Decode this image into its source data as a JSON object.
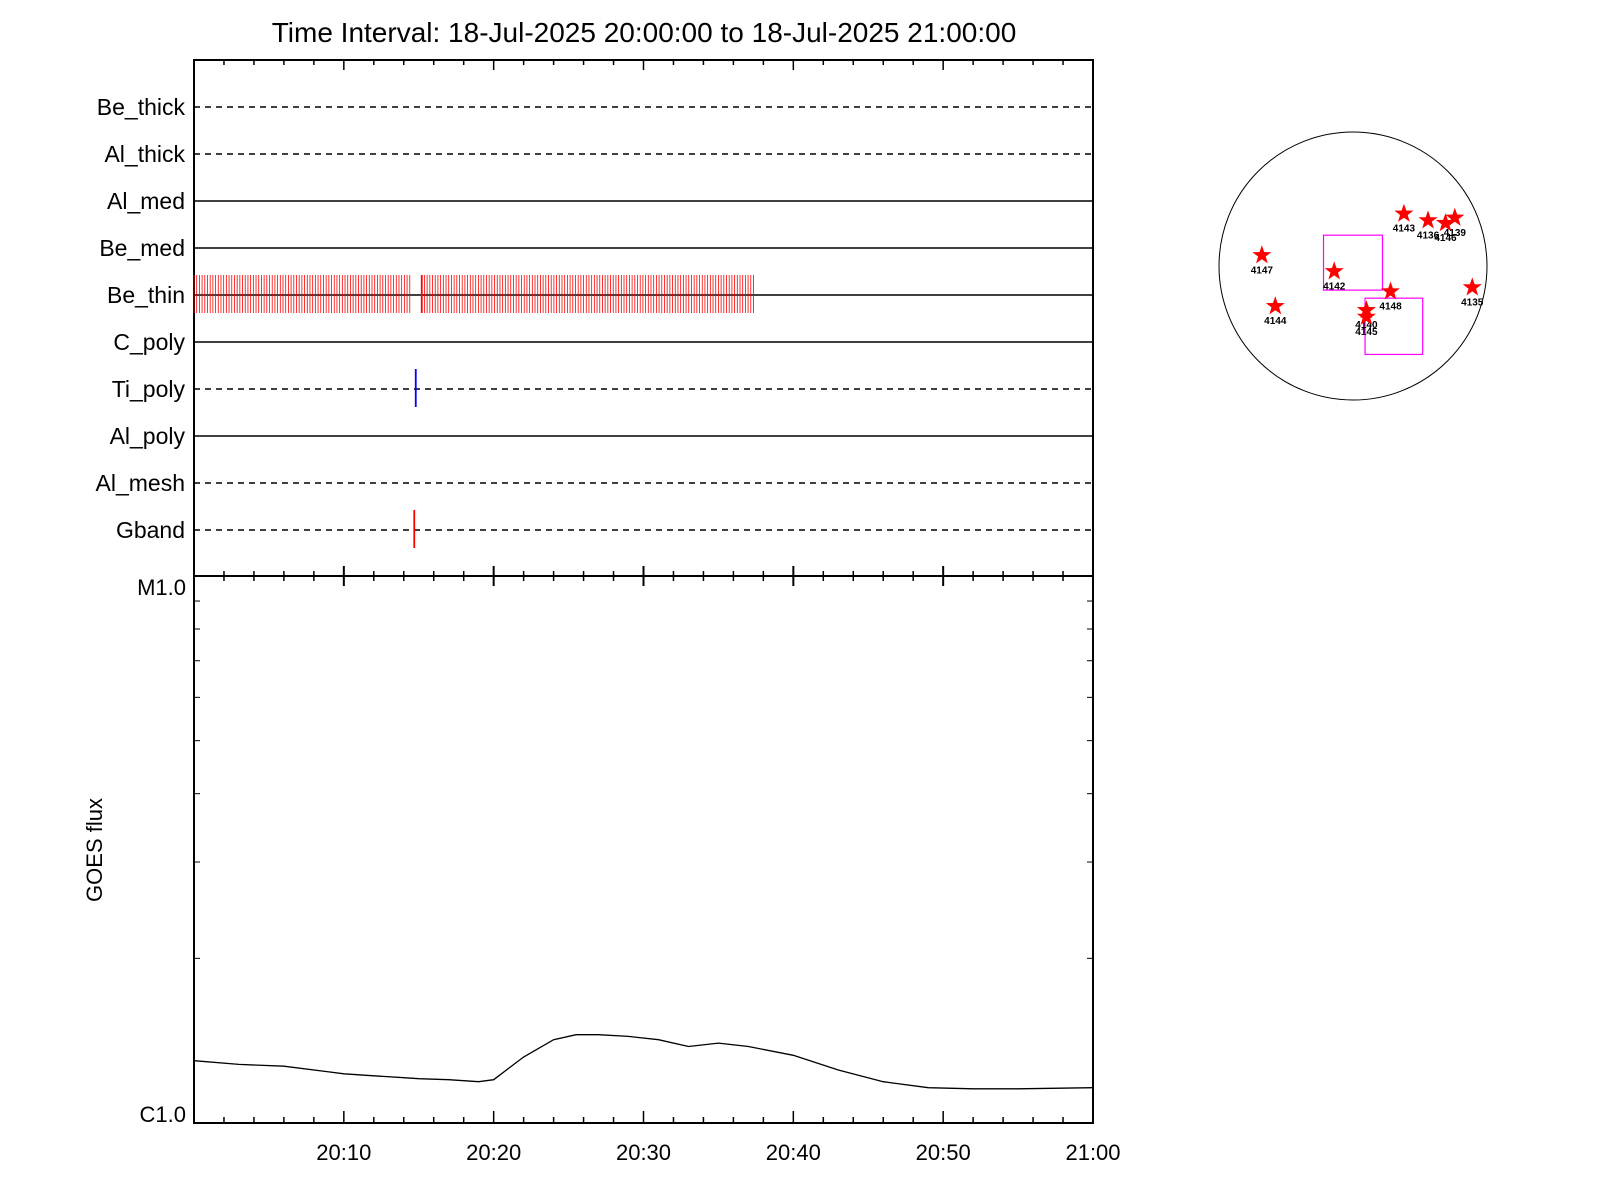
{
  "chart_data": [
    {
      "type": "timeline",
      "title": "Time Interval: 18-Jul-2025 20:00:00 to 18-Jul-2025 21:00:00",
      "x_range": [
        "20:00",
        "21:00"
      ],
      "rows": [
        {
          "name": "Be_thick",
          "line": "dashed",
          "events": []
        },
        {
          "name": "Al_thick",
          "line": "dashed",
          "events": []
        },
        {
          "name": "Al_med",
          "line": "solid",
          "events": []
        },
        {
          "name": "Be_med",
          "line": "solid",
          "events": []
        },
        {
          "name": "Be_thin",
          "line": "solid",
          "color": "#ff0000",
          "events": [
            {
              "start_min": 0.0,
              "end_min": 14.5,
              "cadence_min": 0.18
            },
            {
              "start_min": 15.2,
              "end_min": 37.5,
              "cadence_min": 0.18
            }
          ],
          "marker_min": 15.2
        },
        {
          "name": "C_poly",
          "line": "solid",
          "events": []
        },
        {
          "name": "Ti_poly",
          "line": "dashed",
          "color": "#0000ff",
          "marker_min": 14.8,
          "events": []
        },
        {
          "name": "Al_poly",
          "line": "solid",
          "events": []
        },
        {
          "name": "Al_mesh",
          "line": "dashed",
          "events": []
        },
        {
          "name": "Gband",
          "line": "dashed",
          "color": "#ff0000",
          "marker_min": 14.7,
          "events": []
        }
      ]
    },
    {
      "type": "line",
      "ylabel": "GOES flux",
      "yscale": "log",
      "ylim_labels": [
        "C1.0",
        "M1.0"
      ],
      "ylim": [
        1e-06,
        1e-05
      ],
      "xticks": [
        "20:10",
        "20:20",
        "20:30",
        "20:40",
        "20:50",
        "21:00"
      ],
      "series": [
        {
          "x_min": [
            0,
            3,
            6,
            9,
            10,
            12,
            14,
            15,
            17,
            19,
            20,
            22,
            24,
            25.5,
            27,
            29,
            31,
            33,
            35,
            37,
            40,
            43,
            46,
            49,
            52,
            55,
            60
          ],
          "values": [
            1.3e-06,
            1.28e-06,
            1.27e-06,
            1.24e-06,
            1.23e-06,
            1.22e-06,
            1.21e-06,
            1.205e-06,
            1.2e-06,
            1.19e-06,
            1.2e-06,
            1.32e-06,
            1.42e-06,
            1.45e-06,
            1.45e-06,
            1.44e-06,
            1.42e-06,
            1.38e-06,
            1.4e-06,
            1.38e-06,
            1.33e-06,
            1.25e-06,
            1.19e-06,
            1.16e-06,
            1.155e-06,
            1.155e-06,
            1.16e-06
          ]
        }
      ]
    },
    {
      "type": "scatter",
      "points": [
        {
          "label": "4147",
          "x": -0.68,
          "y": 0.08
        },
        {
          "label": "4142",
          "x": -0.14,
          "y": -0.04
        },
        {
          "label": "4144",
          "x": -0.58,
          "y": -0.3
        },
        {
          "label": "4143",
          "x": 0.38,
          "y": 0.39
        },
        {
          "label": "4136",
          "x": 0.56,
          "y": 0.34
        },
        {
          "label": "4146",
          "x": 0.69,
          "y": 0.32
        },
        {
          "label": "4139",
          "x": 0.76,
          "y": 0.36
        },
        {
          "label": "4135",
          "x": 0.89,
          "y": -0.16
        },
        {
          "label": "4148",
          "x": 0.28,
          "y": -0.19
        },
        {
          "label": "4140",
          "x": 0.1,
          "y": -0.33
        },
        {
          "label": "4145",
          "x": 0.1,
          "y": -0.38
        }
      ],
      "boxes": [
        {
          "x0": -0.22,
          "y0": 0.23,
          "x1": 0.22,
          "y1": -0.18
        },
        {
          "x0": 0.09,
          "y0": -0.24,
          "x1": 0.52,
          "y1": -0.66
        }
      ]
    }
  ]
}
